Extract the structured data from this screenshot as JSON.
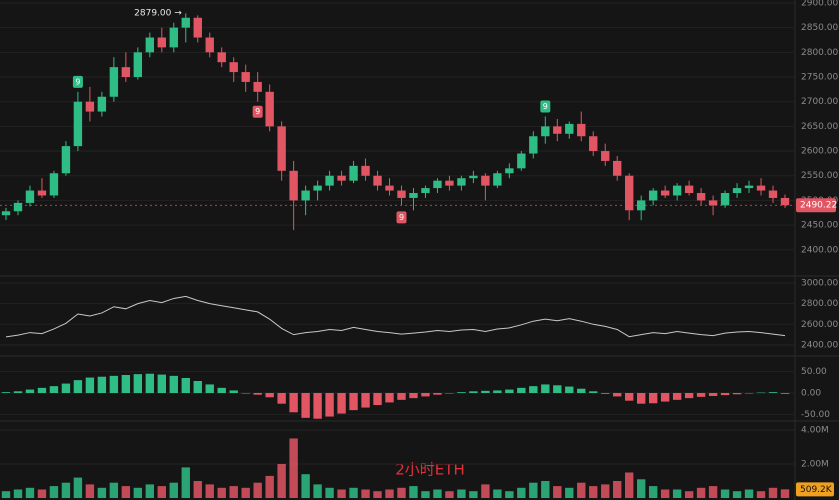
{
  "chart_data": [
    {
      "type": "candlestick",
      "ylim": [
        2355,
        2906
      ],
      "yticks": [
        {
          "value": 2900,
          "label": "2900.00"
        },
        {
          "value": 2850,
          "label": "2850.00"
        },
        {
          "value": 2800,
          "label": "2800.00"
        },
        {
          "value": 2750,
          "label": "2750.00"
        },
        {
          "value": 2700,
          "label": "2700.00"
        },
        {
          "value": 2650,
          "label": "2650.00"
        },
        {
          "value": 2600,
          "label": "2600.00"
        },
        {
          "value": 2550,
          "label": "2550.00"
        },
        {
          "value": 2500,
          "label": "2500.00"
        },
        {
          "value": 2450,
          "label": "2450.00"
        },
        {
          "value": 2400,
          "label": "2400.00"
        }
      ],
      "up_color": "#2ebd85",
      "down_color": "#e25563",
      "peak_label": "2879.00 →",
      "last_price": 2490.22,
      "markers": [
        "9",
        "9",
        "9",
        "9"
      ],
      "open": [
        2470,
        2478,
        2495,
        2520,
        2510,
        2555,
        2610,
        2700,
        2680,
        2710,
        2770,
        2750,
        2800,
        2830,
        2810,
        2850,
        2870,
        2830,
        2800,
        2780,
        2760,
        2740,
        2720,
        2650,
        2560,
        2500,
        2520,
        2530,
        2550,
        2540,
        2570,
        2550,
        2530,
        2520,
        2505,
        2515,
        2525,
        2540,
        2530,
        2545,
        2550,
        2530,
        2555,
        2565,
        2595,
        2630,
        2650,
        2635,
        2655,
        2630,
        2600,
        2580,
        2550,
        2480,
        2500,
        2520,
        2510,
        2530,
        2515,
        2500,
        2490,
        2515,
        2525,
        2530,
        2520,
        2505
      ],
      "high": [
        2485,
        2500,
        2530,
        2545,
        2560,
        2620,
        2720,
        2730,
        2720,
        2790,
        2800,
        2810,
        2840,
        2850,
        2860,
        2879,
        2875,
        2840,
        2810,
        2790,
        2775,
        2760,
        2735,
        2660,
        2580,
        2530,
        2540,
        2560,
        2560,
        2580,
        2585,
        2560,
        2545,
        2530,
        2525,
        2530,
        2545,
        2550,
        2550,
        2560,
        2555,
        2560,
        2575,
        2600,
        2640,
        2670,
        2665,
        2660,
        2680,
        2640,
        2615,
        2590,
        2555,
        2510,
        2525,
        2530,
        2535,
        2540,
        2525,
        2510,
        2520,
        2535,
        2540,
        2545,
        2530,
        2512
      ],
      "low": [
        2460,
        2470,
        2488,
        2505,
        2505,
        2550,
        2600,
        2660,
        2670,
        2700,
        2740,
        2745,
        2790,
        2800,
        2800,
        2820,
        2820,
        2790,
        2770,
        2740,
        2720,
        2700,
        2640,
        2540,
        2440,
        2470,
        2500,
        2520,
        2530,
        2535,
        2540,
        2520,
        2510,
        2490,
        2480,
        2505,
        2515,
        2520,
        2520,
        2535,
        2500,
        2525,
        2545,
        2560,
        2585,
        2615,
        2620,
        2625,
        2620,
        2590,
        2570,
        2540,
        2460,
        2460,
        2490,
        2505,
        2500,
        2510,
        2490,
        2470,
        2485,
        2505,
        2515,
        2510,
        2495,
        2485
      ],
      "close": [
        2478,
        2495,
        2520,
        2510,
        2555,
        2610,
        2700,
        2680,
        2710,
        2770,
        2750,
        2800,
        2830,
        2810,
        2850,
        2870,
        2830,
        2800,
        2780,
        2760,
        2740,
        2720,
        2650,
        2560,
        2500,
        2520,
        2530,
        2550,
        2540,
        2570,
        2550,
        2530,
        2520,
        2505,
        2515,
        2525,
        2540,
        2530,
        2545,
        2550,
        2530,
        2555,
        2565,
        2595,
        2630,
        2650,
        2635,
        2655,
        2630,
        2600,
        2580,
        2550,
        2480,
        2500,
        2520,
        2510,
        2530,
        2515,
        2500,
        2490,
        2515,
        2525,
        2530,
        2520,
        2505,
        2490.22
      ]
    },
    {
      "type": "line",
      "ylim": [
        2303,
        3048
      ],
      "yticks": [
        {
          "value": 3000,
          "label": "3000.00"
        },
        {
          "value": 2800,
          "label": "2800.00"
        },
        {
          "value": 2600,
          "label": "2600.00"
        },
        {
          "value": 2400,
          "label": "2400.00"
        }
      ],
      "color": "#c8c8c8"
    },
    {
      "type": "bar",
      "ylim": [
        -63,
        84
      ],
      "yticks": [
        {
          "value": 50,
          "label": "50.00"
        },
        {
          "value": 0,
          "label": "0.00"
        },
        {
          "value": -50,
          "label": "-50.00"
        }
      ],
      "values": [
        2,
        4,
        8,
        12,
        16,
        22,
        30,
        36,
        38,
        40,
        42,
        44,
        45,
        43,
        40,
        35,
        28,
        20,
        12,
        6,
        0,
        -4,
        -10,
        -25,
        -45,
        -58,
        -60,
        -55,
        -48,
        -40,
        -34,
        -28,
        -22,
        -16,
        -12,
        -8,
        -4,
        -1,
        2,
        4,
        5,
        6,
        8,
        12,
        16,
        20,
        18,
        15,
        10,
        4,
        -2,
        -8,
        -18,
        -25,
        -24,
        -20,
        -16,
        -12,
        -9,
        -7,
        -5,
        -3,
        -1,
        1,
        2,
        -2
      ]
    },
    {
      "type": "volume",
      "ylim": [
        0,
        4.41
      ],
      "title": "2小时ETH",
      "yticks": [
        {
          "value": 4,
          "label": "4.00M"
        },
        {
          "value": 2,
          "label": "2.00M"
        }
      ],
      "values": [
        0.4,
        0.5,
        0.6,
        0.5,
        0.7,
        0.9,
        1.2,
        0.8,
        0.6,
        0.9,
        0.7,
        0.6,
        0.8,
        0.7,
        0.9,
        1.8,
        1.0,
        0.8,
        0.6,
        0.7,
        0.6,
        0.9,
        1.3,
        2.0,
        3.5,
        1.4,
        0.8,
        0.6,
        0.5,
        0.6,
        0.5,
        0.4,
        0.5,
        0.6,
        0.7,
        0.4,
        0.5,
        0.4,
        0.5,
        0.4,
        0.8,
        0.5,
        0.4,
        0.6,
        0.9,
        1.0,
        0.7,
        0.6,
        0.9,
        0.7,
        0.8,
        1.0,
        1.5,
        1.1,
        0.7,
        0.5,
        0.5,
        0.4,
        0.6,
        0.7,
        0.5,
        0.4,
        0.5,
        0.4,
        0.6,
        0.5092
      ],
      "last_label": "509.2K"
    }
  ]
}
